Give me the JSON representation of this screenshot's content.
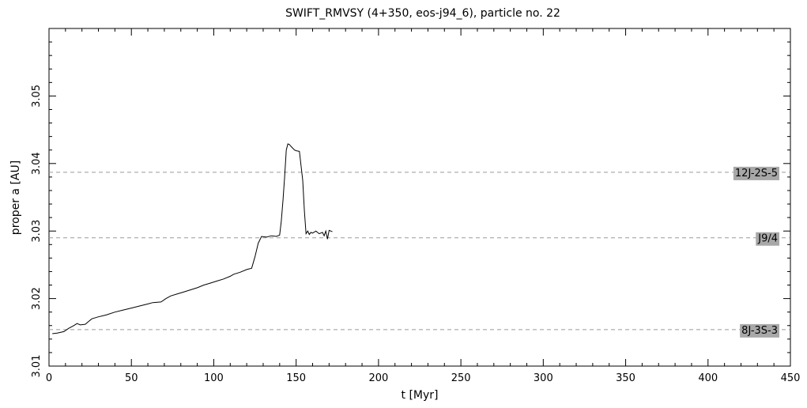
{
  "chart_data": {
    "type": "line",
    "title": "SWIFT_RMVSY (4+350, eos-j94_6), particle no. 22",
    "xlabel": "t [Myr]",
    "ylabel": "proper a [AU]",
    "xlim": [
      0,
      450
    ],
    "ylim": [
      3.01,
      3.06
    ],
    "x_ticks": [
      0,
      50,
      100,
      150,
      200,
      250,
      300,
      350,
      400,
      450
    ],
    "x_tick_labels": [
      "0",
      "50",
      "100",
      "150",
      "200",
      "250",
      "300",
      "350",
      "400",
      "450"
    ],
    "y_ticks": [
      3.01,
      3.02,
      3.03,
      3.04,
      3.05
    ],
    "y_tick_labels": [
      "3.01",
      "3.02",
      "3.03",
      "3.04",
      "3.05"
    ],
    "grid": false,
    "resonances": [
      {
        "label": "12J-2S-5",
        "a": 3.0387
      },
      {
        "label": "J9/4",
        "a": 3.029
      },
      {
        "label": "8J-3S-3",
        "a": 3.0154
      }
    ],
    "series": [
      {
        "x": [
          2,
          5,
          9,
          12,
          15,
          17,
          19,
          22,
          24,
          26,
          30,
          35,
          40,
          45,
          50,
          55,
          60,
          63,
          68,
          71,
          74,
          78,
          82,
          86,
          90,
          94,
          98,
          102,
          106,
          110,
          112,
          116,
          120,
          123,
          125,
          127,
          129,
          132,
          135,
          138,
          140,
          141,
          142,
          143,
          144,
          145,
          146,
          147,
          149,
          150,
          152,
          154,
          155,
          156,
          157,
          158,
          159,
          160,
          162,
          164,
          166,
          167,
          168,
          169,
          170,
          172
        ],
        "y": [
          3.0148,
          3.0149,
          3.0151,
          3.0156,
          3.016,
          3.0163,
          3.0161,
          3.0162,
          3.0166,
          3.017,
          3.0173,
          3.0176,
          3.018,
          3.0183,
          3.0186,
          3.0189,
          3.0192,
          3.0194,
          3.0195,
          3.02,
          3.0204,
          3.0207,
          3.021,
          3.0213,
          3.0216,
          3.022,
          3.0223,
          3.0226,
          3.0229,
          3.0233,
          3.0236,
          3.0239,
          3.0243,
          3.0245,
          3.0262,
          3.0282,
          3.0292,
          3.0291,
          3.0293,
          3.0292,
          3.0294,
          3.0315,
          3.0345,
          3.038,
          3.042,
          3.0429,
          3.0428,
          3.0425,
          3.042,
          3.0419,
          3.0418,
          3.0375,
          3.033,
          3.0296,
          3.03,
          3.0295,
          3.0298,
          3.0297,
          3.03,
          3.0296,
          3.0298,
          3.0293,
          3.03,
          3.0288,
          3.0301,
          3.0299
        ]
      }
    ]
  }
}
